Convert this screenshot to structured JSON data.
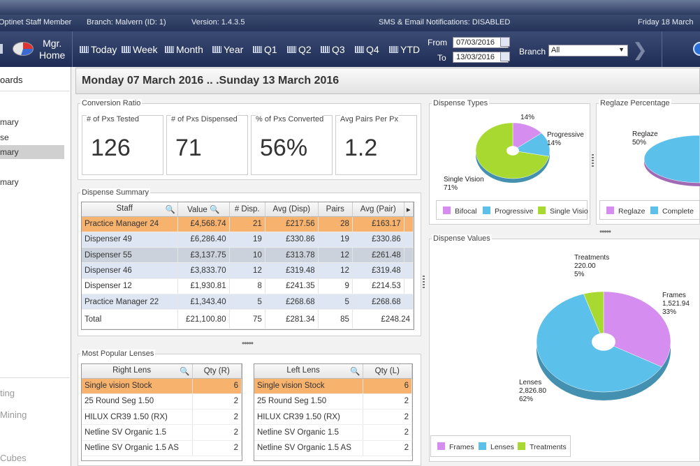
{
  "status": {
    "user": "Optinet Staff Member",
    "branch": "Branch: Malvern (ID:  1)",
    "version": "Version: 1.4.3.5",
    "notifications": "SMS & Email Notifications: DISABLED",
    "date": "Friday 18 March"
  },
  "toolbar": {
    "mgr_line1": "Mgr.",
    "mgr_line2": "Home",
    "periods": [
      "Today",
      "Week",
      "Month",
      "Year",
      "Q1",
      "Q2",
      "Q3",
      "Q4",
      "YTD"
    ],
    "from_label": "From",
    "to_label": "To",
    "from_date": "07/03/2016",
    "to_date": "13/03/2016",
    "branch_label": "Branch",
    "branch_value": "All"
  },
  "sidebar": {
    "items": [
      "oards",
      "mary",
      "se",
      "mary",
      "mary",
      "ting",
      "Mining",
      "Cubes"
    ]
  },
  "header": {
    "date_range": "Monday 07 March 2016  ..  .Sunday 13 March 2016"
  },
  "conversion": {
    "title": "Conversion Ratio",
    "cards": [
      {
        "label": "# of Pxs Tested",
        "value": "126"
      },
      {
        "label": "# of Pxs Dispensed",
        "value": "71"
      },
      {
        "label": "% of Pxs Converted",
        "value": "56%"
      },
      {
        "label": "Avg Pairs Per Px",
        "value": "1.2"
      }
    ]
  },
  "dispense_summary": {
    "title": "Dispense Summary",
    "columns": [
      "Staff",
      "Value",
      "# Disp.",
      "Avg (Disp)",
      "Pairs",
      "Avg (Pair)"
    ],
    "rows": [
      [
        "Practice Manager 24",
        "£4,568.74",
        "21",
        "£217.56",
        "28",
        "£163.17"
      ],
      [
        "Dispenser 49",
        "£6,286.40",
        "19",
        "£330.86",
        "19",
        "£330.86"
      ],
      [
        "Dispenser 55",
        "£3,137.75",
        "10",
        "£313.78",
        "12",
        "£261.48"
      ],
      [
        "Dispenser 46",
        "£3,833.70",
        "12",
        "£319.48",
        "12",
        "£319.48"
      ],
      [
        "Dispenser 12",
        "£1,930.81",
        "8",
        "£241.35",
        "9",
        "£214.53"
      ],
      [
        "Practice Manager 22",
        "£1,343.40",
        "5",
        "£268.68",
        "5",
        "£268.68"
      ]
    ],
    "total": [
      "Total",
      "£21,100.80",
      "75",
      "£281.34",
      "85",
      "£248.24"
    ]
  },
  "lenses": {
    "title": "Most Popular Lenses",
    "right": {
      "columns": [
        "Right Lens",
        "Qty (R)"
      ],
      "rows": [
        [
          "Single vision Stock",
          "6"
        ],
        [
          "25 Round Seg 1.50",
          "2"
        ],
        [
          "HILUX CR39 1.50 (RX)",
          "2"
        ],
        [
          "Netline SV Organic 1.5",
          "2"
        ],
        [
          "Netline SV Organic 1.5 AS",
          "2"
        ]
      ]
    },
    "left": {
      "columns": [
        "Left Lens",
        "Qty (L)"
      ],
      "rows": [
        [
          "Single vision Stock",
          "6"
        ],
        [
          "25 Round Seg 1.50",
          "2"
        ],
        [
          "HILUX CR39 1.50 (RX)",
          "2"
        ],
        [
          "Netline SV Organic 1.5",
          "2"
        ],
        [
          "Netline SV Organic 1.5 AS",
          "2"
        ]
      ]
    }
  },
  "dispense_types": {
    "title": "Dispense Types",
    "labels": {
      "bifocal": "14%",
      "progressive_name": "Progressive",
      "progressive_pct": "14%",
      "sv_name": "Single Vision",
      "sv_pct": "71%"
    },
    "legend": [
      "Bifocal",
      "Progressive",
      "Single Visio"
    ]
  },
  "reglaze": {
    "title": "Reglaze Percentage",
    "label_name": "Reglaze",
    "label_pct": "50%",
    "legend": [
      "Reglaze",
      "Complete"
    ]
  },
  "dispense_values": {
    "title": "Dispense Values",
    "labels": {
      "treat_name": "Treatments",
      "treat_val": "220.00",
      "treat_pct": "5%",
      "frames_name": "Frames",
      "frames_val": "1,521.94",
      "frames_pct": "33%",
      "lenses_name": "Lenses",
      "lenses_val": "2,826.80",
      "lenses_pct": "62%"
    },
    "legend": [
      "Frames",
      "Lenses",
      "Treatments"
    ]
  },
  "colors": {
    "purple": "#d58ef0",
    "blue": "#5bc0ea",
    "green": "#a8d930",
    "selected_row": "#f7b26e"
  },
  "chart_data": [
    {
      "type": "pie",
      "title": "Dispense Types",
      "categories": [
        "Bifocal",
        "Progressive",
        "Single Vision"
      ],
      "values": [
        14,
        14,
        71
      ]
    },
    {
      "type": "pie",
      "title": "Reglaze Percentage",
      "categories": [
        "Reglaze",
        "Complete"
      ],
      "values": [
        50,
        50
      ]
    },
    {
      "type": "pie",
      "title": "Dispense Values",
      "categories": [
        "Frames",
        "Lenses",
        "Treatments"
      ],
      "values": [
        1521.94,
        2826.8,
        220.0
      ]
    }
  ]
}
